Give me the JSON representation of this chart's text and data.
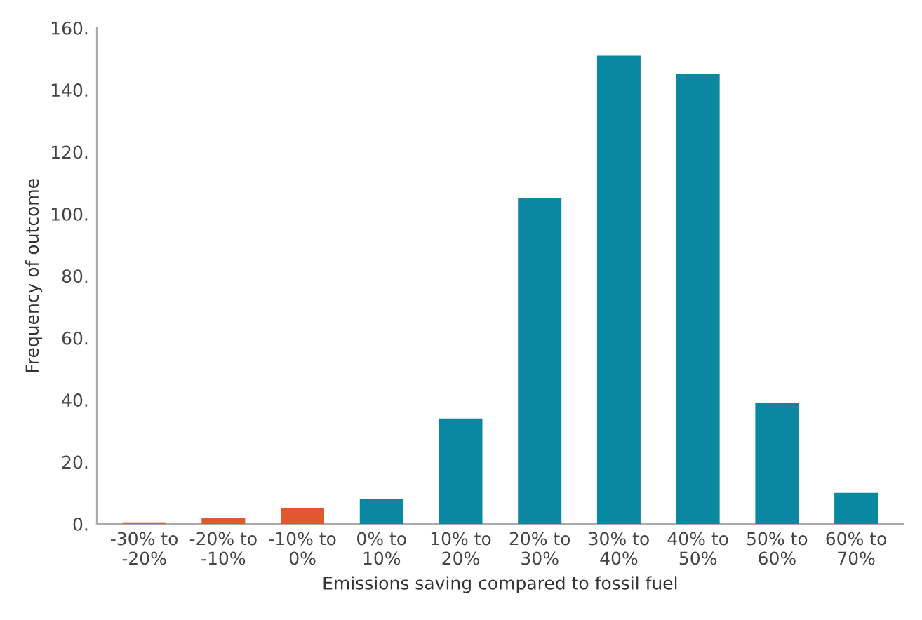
{
  "chart_data": {
    "type": "bar",
    "xlabel": "Emissions saving compared to fossil fuel",
    "ylabel": "Frequency of outcome",
    "categories": [
      "-30% to -20%",
      "-20% to -10%",
      "-10% to 0%",
      "0% to 10%",
      "10% to 20%",
      "20% to 30%",
      "30% to 40%",
      "40% to 50%",
      "50% to 60%",
      "60% to 70%"
    ],
    "values": [
      0.5,
      2,
      5,
      8,
      34,
      105,
      151,
      145,
      39,
      10
    ],
    "colors": [
      "#e0582f",
      "#e0582f",
      "#e0582f",
      "#0a87a1",
      "#0a87a1",
      "#0a87a1",
      "#0a87a1",
      "#0a87a1",
      "#0a87a1",
      "#0a87a1"
    ],
    "ylim": [
      0,
      160
    ],
    "yticks": [
      {
        "value": 0,
        "label": "0."
      },
      {
        "value": 20,
        "label": "20."
      },
      {
        "value": 40,
        "label": "40."
      },
      {
        "value": 60,
        "label": "60."
      },
      {
        "value": 80,
        "label": "80."
      },
      {
        "value": 100,
        "label": "100."
      },
      {
        "value": 120,
        "label": "120."
      },
      {
        "value": 140,
        "label": "140."
      },
      {
        "value": 160,
        "label": "160."
      }
    ],
    "grid": false
  }
}
